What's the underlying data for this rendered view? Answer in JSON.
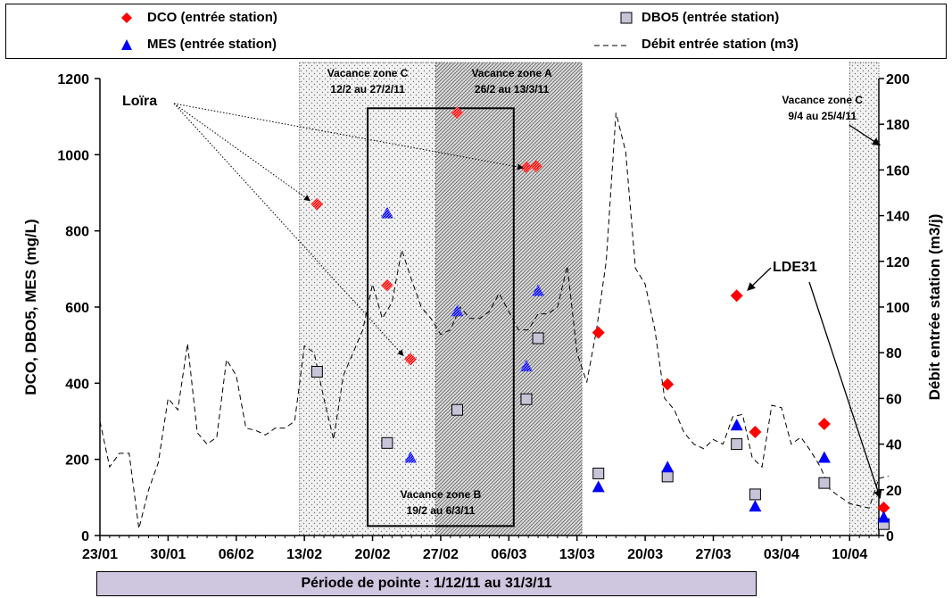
{
  "legend": {
    "dco": "DCO (entrée station)",
    "dbo5": "DBO5 (entrée station)",
    "mes": "MES (entrée station)",
    "debit": "Débit entrée station (m3)"
  },
  "period_label": "Période de pointe : 1/12/11 au 31/3/11",
  "chart_data": {
    "type": "scatter",
    "x_axis": {
      "label": "",
      "ticks": [
        "23/01",
        "30/01",
        "06/02",
        "13/02",
        "20/02",
        "27/02",
        "06/03",
        "13/03",
        "20/03",
        "27/03",
        "03/04",
        "10/04"
      ],
      "range_days": [
        0,
        80
      ]
    },
    "y_axis_left": {
      "label": "DCO, DBO5, MES (mg/L)",
      "range": [
        0,
        1200
      ],
      "ticks": [
        0,
        200,
        400,
        600,
        800,
        1000,
        1200
      ]
    },
    "y_axis_right": {
      "label": "Débit entrée station (m3/j)",
      "range": [
        0,
        200
      ],
      "ticks": [
        0,
        20,
        40,
        60,
        80,
        100,
        120,
        140,
        160,
        180,
        200
      ]
    },
    "colors": {
      "dco": "#ff0000",
      "mes": "#0000ff",
      "dbo5": "#c8c4d8",
      "debit": "#000000"
    },
    "zones": [
      {
        "label": "Vacance zone C",
        "dates": "12/2 au 27/2/11",
        "start": 20.5,
        "end": 35.5,
        "pattern": "dots"
      },
      {
        "label": "Vacance zone A",
        "dates": "26/2 au 13/3/11",
        "start": 34.5,
        "end": 49.5,
        "pattern": "hatch"
      },
      {
        "label": "Vacance zone C",
        "dates": "9/4 au 25/4/11",
        "start": 77,
        "end": 80,
        "pattern": "dots"
      }
    ],
    "zone_b": {
      "label": "Vacance zone B",
      "dates": "19/2 au 6/3/11",
      "start": 27.5,
      "end": 42.5,
      "top": 1122,
      "bottom": 25
    },
    "series": [
      {
        "name": "DCO (entrée station)",
        "marker": "diamond",
        "points": [
          {
            "x": 22.3,
            "y": 870,
            "hatched": true
          },
          {
            "x": 29.5,
            "y": 657,
            "hatched": true
          },
          {
            "x": 31.9,
            "y": 463,
            "hatched": true
          },
          {
            "x": 36.7,
            "y": 1110,
            "hatched": true
          },
          {
            "x": 43.8,
            "y": 967,
            "hatched": true
          },
          {
            "x": 44.8,
            "y": 970,
            "hatched": true
          },
          {
            "x": 51.2,
            "y": 533
          },
          {
            "x": 58.3,
            "y": 397
          },
          {
            "x": 65.4,
            "y": 630
          },
          {
            "x": 67.3,
            "y": 272
          },
          {
            "x": 74.4,
            "y": 293
          },
          {
            "x": 80.5,
            "y": 73
          }
        ]
      },
      {
        "name": "DBO5 (entrée station)",
        "marker": "square",
        "points": [
          {
            "x": 22.3,
            "y": 430
          },
          {
            "x": 29.5,
            "y": 243
          },
          {
            "x": 36.7,
            "y": 330
          },
          {
            "x": 43.8,
            "y": 358
          },
          {
            "x": 45.0,
            "y": 518
          },
          {
            "x": 51.2,
            "y": 163
          },
          {
            "x": 58.3,
            "y": 155
          },
          {
            "x": 65.4,
            "y": 240
          },
          {
            "x": 67.3,
            "y": 108
          },
          {
            "x": 74.4,
            "y": 138
          },
          {
            "x": 80.5,
            "y": 30
          }
        ]
      },
      {
        "name": "MES (entrée station)",
        "marker": "triangle",
        "points": [
          {
            "x": 29.5,
            "y": 847,
            "hatched": true
          },
          {
            "x": 31.9,
            "y": 205,
            "hatched": true
          },
          {
            "x": 36.7,
            "y": 590,
            "hatched": true
          },
          {
            "x": 43.8,
            "y": 445,
            "hatched": true
          },
          {
            "x": 45.0,
            "y": 643,
            "hatched": true
          },
          {
            "x": 51.2,
            "y": 128
          },
          {
            "x": 58.3,
            "y": 180
          },
          {
            "x": 65.4,
            "y": 290
          },
          {
            "x": 67.3,
            "y": 77
          },
          {
            "x": 74.4,
            "y": 205
          },
          {
            "x": 80.5,
            "y": 48
          }
        ]
      },
      {
        "name": "Débit entrée station (m3)",
        "type": "line",
        "axis": "right",
        "dash": true,
        "x": [
          0,
          1,
          2,
          3,
          4,
          5,
          6,
          7,
          8,
          9,
          10,
          11,
          12,
          13,
          14,
          15,
          16,
          17,
          18,
          19,
          20,
          21,
          22,
          23,
          24,
          25,
          26,
          27,
          28,
          29,
          30,
          31,
          32,
          33,
          34,
          35,
          36,
          37,
          38,
          39,
          40,
          41,
          42,
          43,
          44,
          45,
          46,
          47,
          48,
          49,
          50,
          51,
          52,
          53,
          54,
          55,
          56,
          57,
          58,
          59,
          60,
          61,
          62,
          63,
          64,
          65,
          66,
          67,
          68,
          69,
          70,
          71,
          72,
          73,
          74,
          75,
          76,
          77,
          78,
          79,
          80,
          81
        ],
        "y": [
          50,
          30,
          36,
          36,
          3,
          20,
          32,
          60,
          55,
          84,
          45,
          40,
          43,
          77,
          70,
          47,
          46,
          44,
          47,
          47,
          50,
          83,
          80,
          60,
          42,
          70,
          80,
          90,
          110,
          95,
          102,
          125,
          112,
          100,
          95,
          88,
          90,
          100,
          95,
          95,
          98,
          106,
          98,
          90,
          90,
          97,
          97,
          100,
          118,
          80,
          67,
          90,
          120,
          185,
          168,
          117,
          110,
          90,
          60,
          55,
          45,
          40,
          38,
          42,
          40,
          52,
          53,
          34,
          30,
          57,
          56,
          40,
          43,
          37,
          30,
          20,
          17,
          14,
          13,
          12,
          25,
          26
        ]
      }
    ],
    "annotations": [
      {
        "text": "Loïra",
        "targets": [
          [
            22.3,
            870
          ],
          [
            31.9,
            463
          ],
          [
            44.2,
            970
          ]
        ]
      },
      {
        "text": "LDE31",
        "targets": [
          [
            65.6,
            630
          ],
          [
            80.5,
            75
          ]
        ]
      },
      {
        "text": "",
        "targets": [
          [
            80.3,
            1025
          ]
        ]
      }
    ]
  }
}
